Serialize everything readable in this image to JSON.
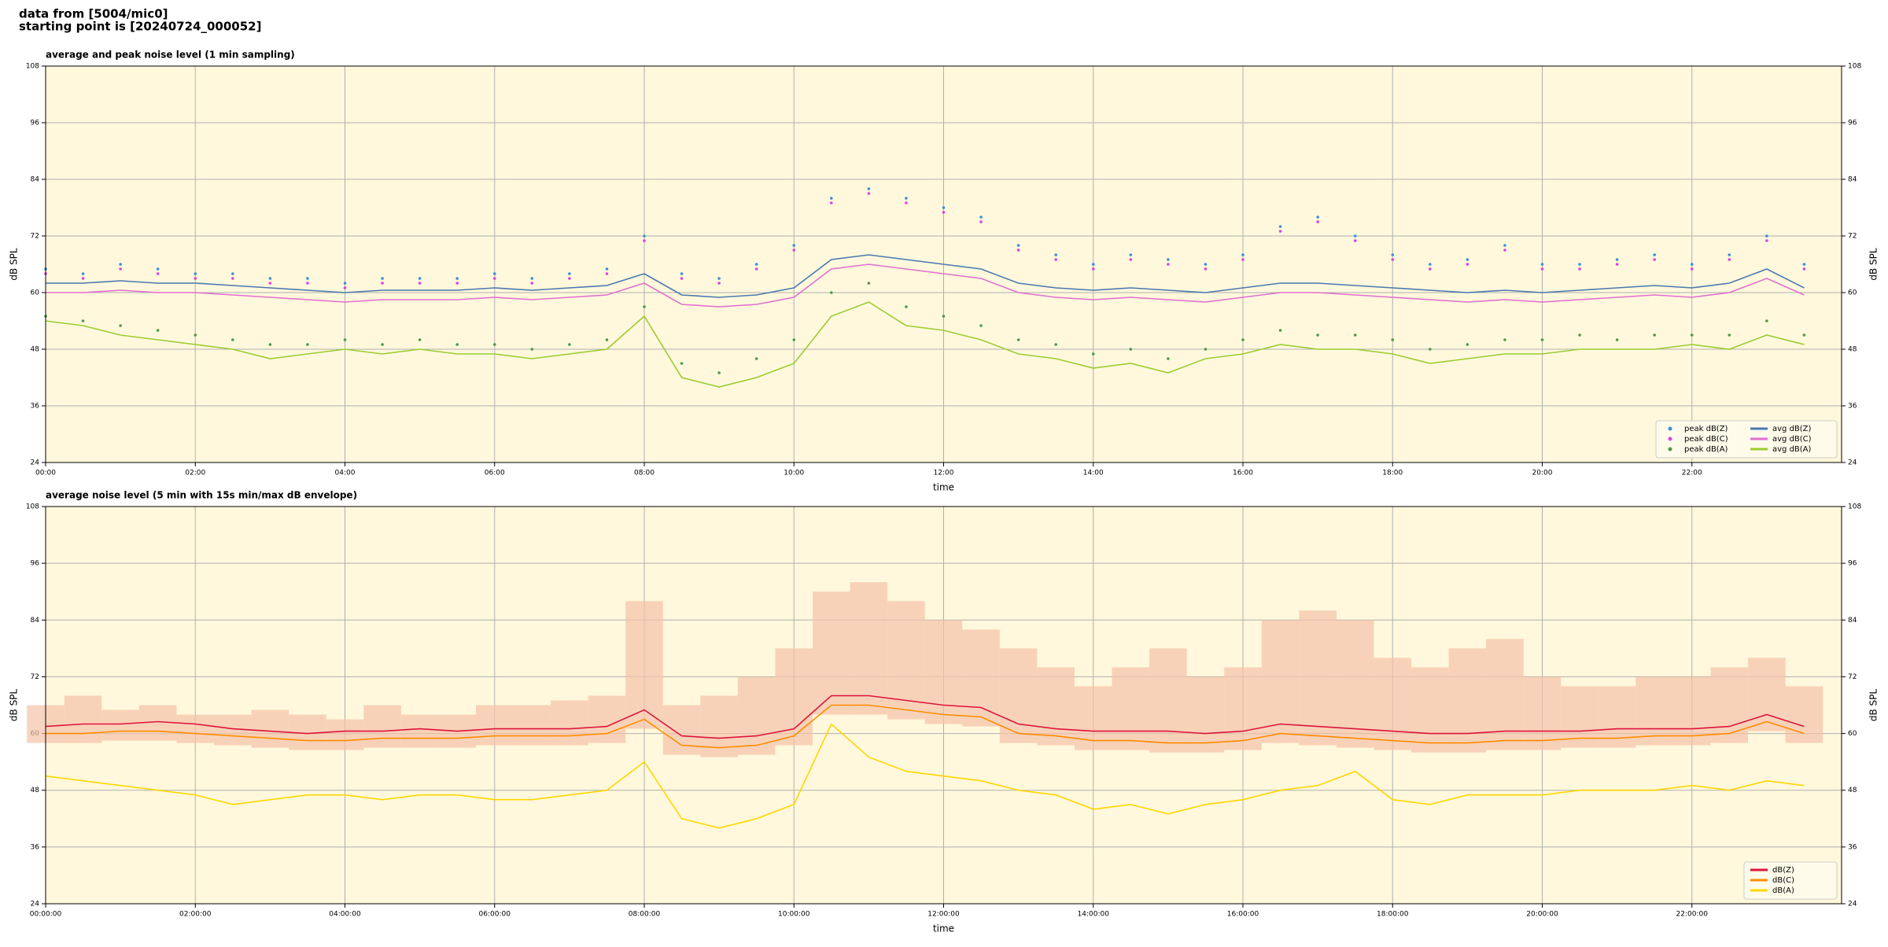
{
  "header": {
    "source": "data from [5004/mic0]",
    "start": "starting point is [20240724_000052]"
  },
  "chart_data": [
    {
      "type": "line",
      "title": "average and peak noise level (1 min sampling)",
      "xlabel": "time",
      "ylabel": "dB SPL",
      "y2label": "dB SPL",
      "x": [
        0,
        0.5,
        1,
        1.5,
        2,
        2.5,
        3,
        3.5,
        4,
        4.5,
        5,
        5.5,
        6,
        6.5,
        7,
        7.5,
        8,
        8.5,
        9,
        9.5,
        10,
        10.5,
        11,
        11.5,
        12,
        12.5,
        13,
        13.5,
        14,
        14.5,
        15,
        15.5,
        16,
        16.5,
        17,
        17.5,
        18,
        18.5,
        19,
        19.5,
        20,
        20.5,
        21,
        21.5,
        22,
        22.5,
        23,
        23.5
      ],
      "xlim": [
        0,
        24
      ],
      "xticks": [
        {
          "value": 0,
          "label": "00:00"
        },
        {
          "value": 2,
          "label": "02:00"
        },
        {
          "value": 4,
          "label": "04:00"
        },
        {
          "value": 6,
          "label": "06:00"
        },
        {
          "value": 8,
          "label": "08:00"
        },
        {
          "value": 10,
          "label": "10:00"
        },
        {
          "value": 12,
          "label": "12:00"
        },
        {
          "value": 14,
          "label": "14:00"
        },
        {
          "value": 16,
          "label": "16:00"
        },
        {
          "value": 18,
          "label": "18:00"
        },
        {
          "value": 20,
          "label": "20:00"
        },
        {
          "value": 22,
          "label": "22:00"
        }
      ],
      "ylim": [
        24,
        108
      ],
      "yticks": [
        24,
        36,
        48,
        60,
        72,
        84,
        96,
        108
      ],
      "y2lim": [
        24,
        108
      ],
      "y2ticks": [
        24,
        36,
        48,
        60,
        72,
        84,
        96,
        108
      ],
      "grid": true,
      "background": "#fff8dc",
      "legend": "lower right",
      "legend_columns": 2,
      "series": [
        {
          "name": "peak dB(Z)",
          "style": "dots",
          "color": "#3a8fd8",
          "values": [
            65,
            64,
            66,
            65,
            64,
            64,
            63,
            63,
            62,
            63,
            63,
            63,
            64,
            63,
            64,
            65,
            72,
            64,
            63,
            66,
            70,
            80,
            82,
            80,
            78,
            76,
            70,
            68,
            66,
            68,
            67,
            66,
            68,
            74,
            76,
            72,
            68,
            66,
            67,
            70,
            66,
            66,
            67,
            68,
            66,
            68,
            72,
            66
          ]
        },
        {
          "name": "peak dB(C)",
          "style": "dots",
          "color": "#e040e0",
          "values": [
            64,
            63,
            65,
            64,
            63,
            63,
            62,
            62,
            61,
            62,
            62,
            62,
            63,
            62,
            63,
            64,
            71,
            63,
            62,
            65,
            69,
            79,
            81,
            79,
            77,
            75,
            69,
            67,
            65,
            67,
            66,
            65,
            67,
            73,
            75,
            71,
            67,
            65,
            66,
            69,
            65,
            65,
            66,
            67,
            65,
            67,
            71,
            65
          ]
        },
        {
          "name": "peak dB(A)",
          "style": "dots",
          "color": "#4a9a4a",
          "values": [
            55,
            54,
            53,
            52,
            51,
            50,
            49,
            49,
            50,
            49,
            50,
            49,
            49,
            48,
            49,
            50,
            57,
            45,
            43,
            46,
            50,
            60,
            62,
            57,
            55,
            53,
            50,
            49,
            47,
            48,
            46,
            48,
            50,
            52,
            51,
            51,
            50,
            48,
            49,
            50,
            50,
            51,
            50,
            51,
            51,
            51,
            54,
            51
          ]
        },
        {
          "name": "avg dB(Z)",
          "style": "line",
          "color": "#4a78b0",
          "values": [
            62,
            62,
            62.5,
            62,
            62,
            61.5,
            61,
            60.5,
            60,
            60.5,
            60.5,
            60.5,
            61,
            60.5,
            61,
            61.5,
            64,
            59.5,
            59,
            59.5,
            61,
            67,
            68,
            67,
            66,
            65,
            62,
            61,
            60.5,
            61,
            60.5,
            60,
            61,
            62,
            62,
            61.5,
            61,
            60.5,
            60,
            60.5,
            60,
            60.5,
            61,
            61.5,
            61,
            62,
            65,
            61
          ]
        },
        {
          "name": "avg dB(C)",
          "style": "line",
          "color": "#e070d0",
          "values": [
            60,
            60,
            60.5,
            60,
            60,
            59.5,
            59,
            58.5,
            58,
            58.5,
            58.5,
            58.5,
            59,
            58.5,
            59,
            59.5,
            62,
            57.5,
            57,
            57.5,
            59,
            65,
            66,
            65,
            64,
            63,
            60,
            59,
            58.5,
            59,
            58.5,
            58,
            59,
            60,
            60,
            59.5,
            59,
            58.5,
            58,
            58.5,
            58,
            58.5,
            59,
            59.5,
            59,
            60,
            63,
            59.5
          ]
        },
        {
          "name": "avg dB(A)",
          "style": "line",
          "color": "#9acd32",
          "values": [
            54,
            53,
            51,
            50,
            49,
            48,
            46,
            47,
            48,
            47,
            48,
            47,
            47,
            46,
            47,
            48,
            55,
            42,
            40,
            42,
            45,
            55,
            58,
            53,
            52,
            50,
            47,
            46,
            44,
            45,
            43,
            46,
            47,
            49,
            48,
            48,
            47,
            45,
            46,
            47,
            47,
            48,
            48,
            48,
            49,
            48,
            51,
            49
          ]
        }
      ]
    },
    {
      "type": "line",
      "title": "average noise level (5 min with 15s min/max dB envelope)",
      "xlabel": "time",
      "ylabel": "dB SPL",
      "y2label": "dB SPL",
      "x": [
        0,
        0.5,
        1,
        1.5,
        2,
        2.5,
        3,
        3.5,
        4,
        4.5,
        5,
        5.5,
        6,
        6.5,
        7,
        7.5,
        8,
        8.5,
        9,
        9.5,
        10,
        10.5,
        11,
        11.5,
        12,
        12.5,
        13,
        13.5,
        14,
        14.5,
        15,
        15.5,
        16,
        16.5,
        17,
        17.5,
        18,
        18.5,
        19,
        19.5,
        20,
        20.5,
        21,
        21.5,
        22,
        22.5,
        23,
        23.5
      ],
      "xlim": [
        0,
        24
      ],
      "xticks": [
        {
          "value": 0,
          "label": "00:00:00"
        },
        {
          "value": 2,
          "label": "02:00:00"
        },
        {
          "value": 4,
          "label": "04:00:00"
        },
        {
          "value": 6,
          "label": "06:00:00"
        },
        {
          "value": 8,
          "label": "08:00:00"
        },
        {
          "value": 10,
          "label": "10:00:00"
        },
        {
          "value": 12,
          "label": "12:00:00"
        },
        {
          "value": 14,
          "label": "14:00:00"
        },
        {
          "value": 16,
          "label": "16:00:00"
        },
        {
          "value": 18,
          "label": "18:00:00"
        },
        {
          "value": 20,
          "label": "20:00:00"
        },
        {
          "value": 22,
          "label": "22:00:00"
        }
      ],
      "ylim": [
        24,
        108
      ],
      "yticks": [
        24,
        36,
        48,
        60,
        72,
        84,
        96,
        108
      ],
      "y2lim": [
        24,
        108
      ],
      "y2ticks": [
        24,
        36,
        48,
        60,
        72,
        84,
        96,
        108
      ],
      "grid": true,
      "background": "#fff8dc",
      "legend": "lower right",
      "legend_columns": 1,
      "envelope": {
        "color": "#f5c2a8",
        "lower": [
          58,
          58,
          58.5,
          58.5,
          58,
          57.5,
          57,
          56.5,
          56.5,
          57,
          57,
          57,
          57.5,
          57.5,
          57.5,
          58,
          61,
          55.5,
          55,
          55.5,
          57.5,
          64,
          64,
          63,
          62,
          61.5,
          58,
          57.5,
          56.5,
          56.5,
          56,
          56,
          56.5,
          58,
          57.5,
          57,
          56.5,
          56,
          56,
          56.5,
          56.5,
          57,
          57,
          57.5,
          57.5,
          58,
          60.5,
          58
        ],
        "upper": [
          66,
          68,
          65,
          66,
          64,
          64,
          65,
          64,
          63,
          66,
          64,
          64,
          66,
          66,
          67,
          68,
          88,
          66,
          68,
          72,
          78,
          90,
          92,
          88,
          84,
          82,
          78,
          74,
          70,
          74,
          78,
          72,
          74,
          84,
          86,
          84,
          76,
          74,
          78,
          80,
          72,
          70,
          70,
          72,
          72,
          74,
          76,
          70
        ]
      },
      "series": [
        {
          "name": "dB(Z)",
          "style": "line",
          "color": "#dc143c",
          "values": [
            61.5,
            62,
            62,
            62.5,
            62,
            61,
            60.5,
            60,
            60.5,
            60.5,
            61,
            60.5,
            61,
            61,
            61,
            61.5,
            65,
            59.5,
            59,
            59.5,
            61,
            68,
            68,
            67,
            66,
            65.5,
            62,
            61,
            60.5,
            60.5,
            60.5,
            60,
            60.5,
            62,
            61.5,
            61,
            60.5,
            60,
            60,
            60.5,
            60.5,
            60.5,
            61,
            61,
            61,
            61.5,
            64,
            61.5
          ]
        },
        {
          "name": "dB(C)",
          "style": "line",
          "color": "#ff8c00",
          "values": [
            60,
            60,
            60.5,
            60.5,
            60,
            59.5,
            59,
            58.5,
            58.5,
            59,
            59,
            59,
            59.5,
            59.5,
            59.5,
            60,
            63,
            57.5,
            57,
            57.5,
            59.5,
            66,
            66,
            65,
            64,
            63.5,
            60,
            59.5,
            58.5,
            58.5,
            58,
            58,
            58.5,
            60,
            59.5,
            59,
            58.5,
            58,
            58,
            58.5,
            58.5,
            59,
            59,
            59.5,
            59.5,
            60,
            62.5,
            60
          ]
        },
        {
          "name": "dB(A)",
          "style": "line",
          "color": "#ffd700",
          "values": [
            51,
            50,
            49,
            48,
            47,
            45,
            46,
            47,
            47,
            46,
            47,
            47,
            46,
            46,
            47,
            48,
            54,
            42,
            40,
            42,
            45,
            62,
            55,
            52,
            51,
            50,
            48,
            47,
            44,
            45,
            43,
            45,
            46,
            48,
            49,
            52,
            46,
            45,
            47,
            47,
            47,
            48,
            48,
            48,
            49,
            48,
            50,
            49
          ]
        }
      ]
    }
  ]
}
